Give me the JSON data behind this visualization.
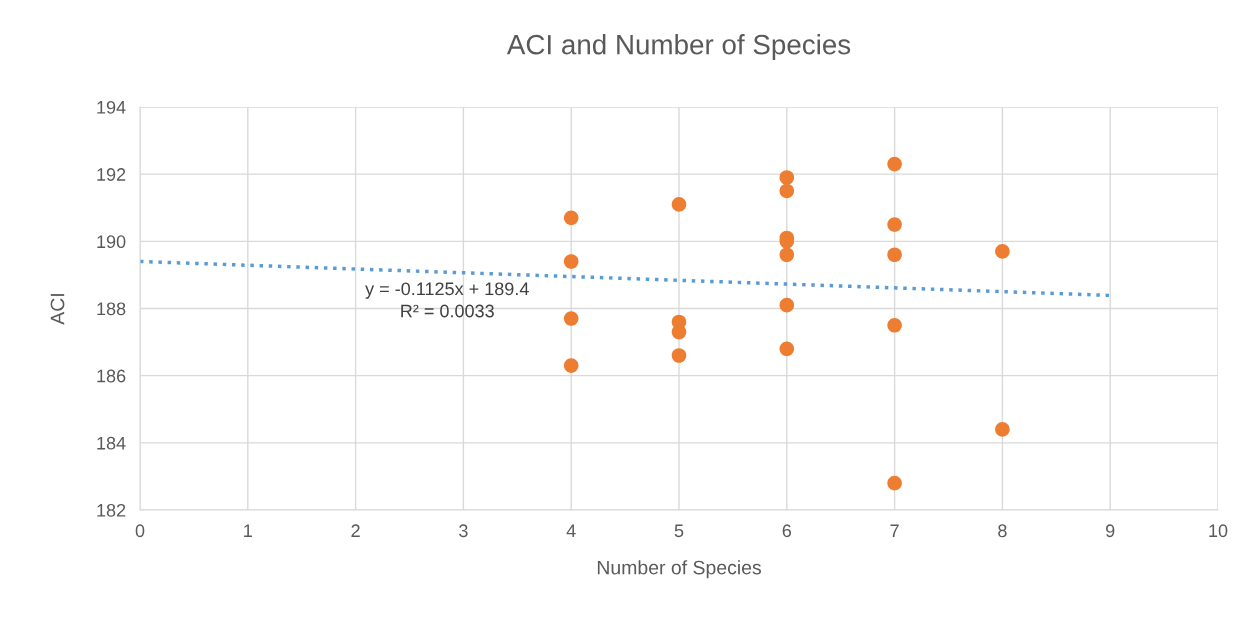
{
  "chart_data": {
    "type": "scatter",
    "title": "ACI and Number of Species",
    "xlabel": "Number of Species",
    "ylabel": "ACI",
    "xlim": [
      0,
      10
    ],
    "xticks": [
      0,
      1,
      2,
      3,
      4,
      5,
      6,
      7,
      8,
      9,
      10
    ],
    "ylim": [
      182,
      194
    ],
    "yticks": [
      182,
      184,
      186,
      188,
      190,
      192,
      194
    ],
    "grid": true,
    "series": [
      {
        "marker": "circle",
        "color": "#ed7d31",
        "x": [
          4,
          4,
          4,
          4,
          5,
          5,
          5,
          5,
          6,
          6,
          6,
          6,
          6,
          6,
          6,
          7,
          7,
          7,
          7,
          7,
          8,
          8
        ],
        "values": [
          190.7,
          189.4,
          187.7,
          186.3,
          191.1,
          187.6,
          187.3,
          186.6,
          191.9,
          191.5,
          190.1,
          190.0,
          189.6,
          188.1,
          186.8,
          192.3,
          190.5,
          189.6,
          187.5,
          182.8,
          189.7,
          184.4
        ]
      },
      {
        "type": "line",
        "marker": "none",
        "color": "#5b9bd5",
        "line_style": "dotted",
        "x": [
          0,
          9
        ],
        "values": [
          189.4,
          188.39
        ]
      }
    ],
    "annotations": [
      "y = -0.1125x + 189.4",
      "R² = 0.0033"
    ]
  }
}
